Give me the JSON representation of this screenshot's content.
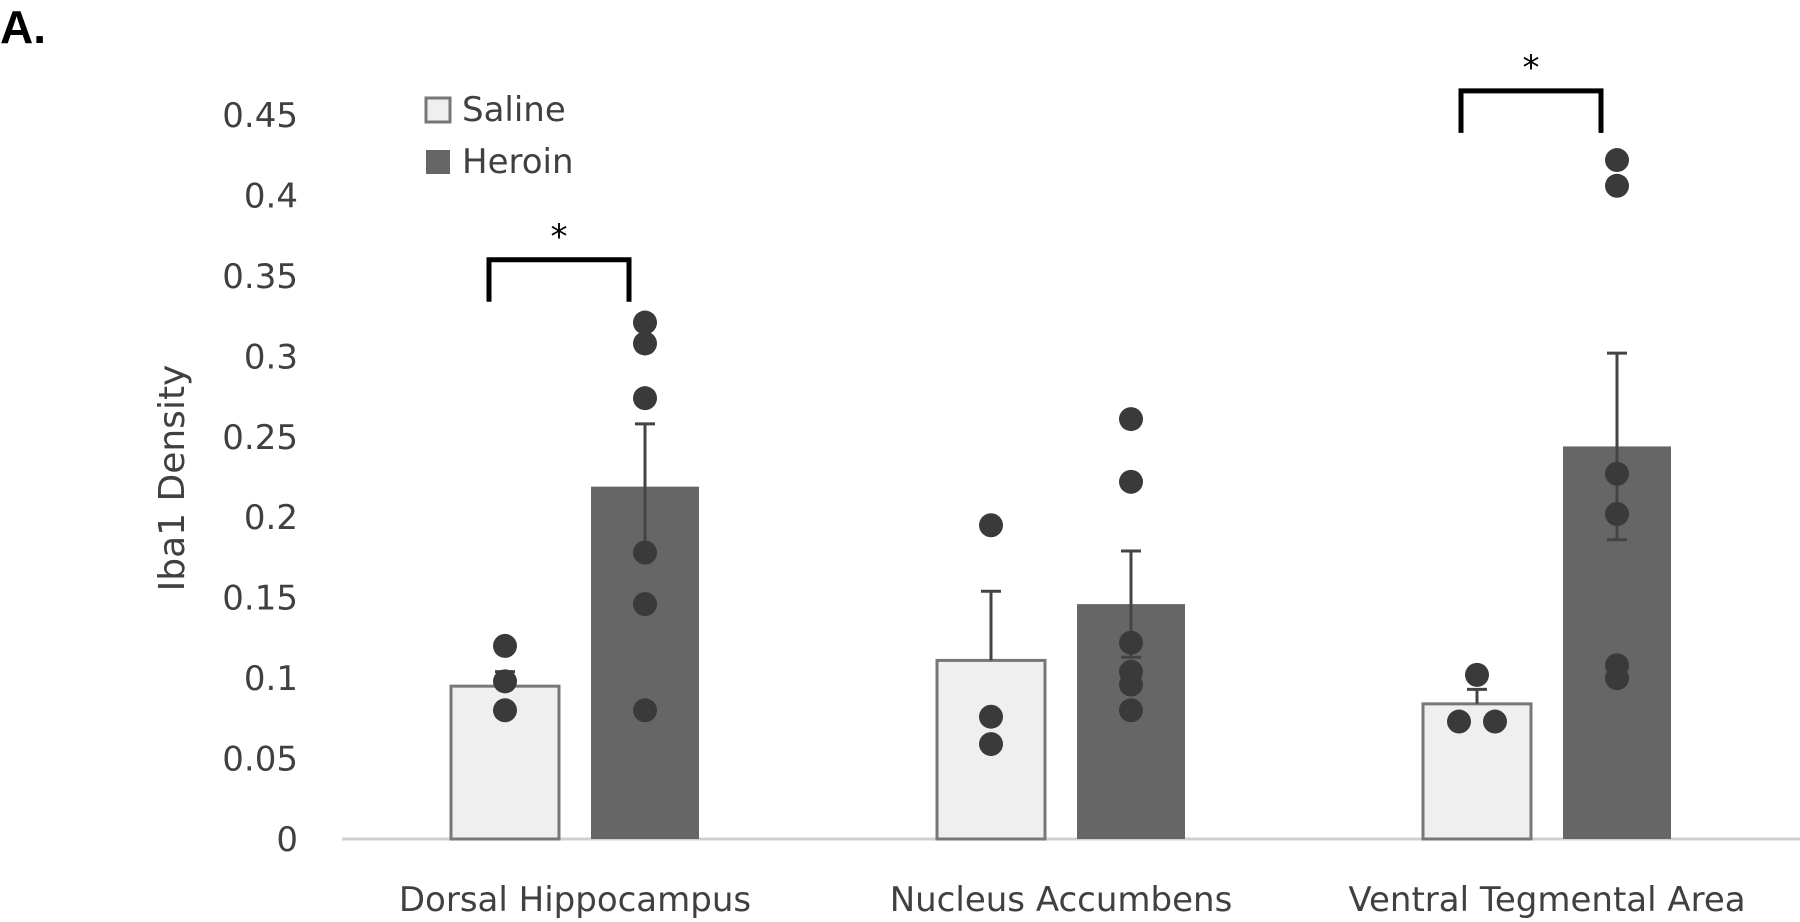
{
  "panel_label": "A.",
  "chart_data": {
    "type": "bar",
    "title": "",
    "xlabel": "",
    "ylabel": "Iba1 Density",
    "ylim": [
      0,
      0.45
    ],
    "yticks": [
      "0",
      "0.05",
      "0.1",
      "0.15",
      "0.2",
      "0.25",
      "0.3",
      "0.35",
      "0.4",
      "0.45"
    ],
    "grid": false,
    "legend_position": "top-left",
    "categories": [
      "Dorsal Hippocampus",
      "Nucleus Accumbens",
      "Ventral Tegmental Area"
    ],
    "series": [
      {
        "name": "Saline",
        "color": "#efefef",
        "edge_color": "#777777",
        "values": [
          0.095,
          0.111,
          0.084
        ],
        "error": [
          0.009,
          0.043,
          0.009
        ],
        "points": [
          [
            0.12,
            0.098,
            0.08
          ],
          [
            0.195,
            0.076,
            0.059
          ],
          [
            0.102,
            0.073,
            0.073
          ]
        ]
      },
      {
        "name": "Heroin",
        "color": "#666666",
        "edge_color": "#666666",
        "values": [
          0.219,
          0.146,
          0.244
        ],
        "error": [
          0.039,
          0.033,
          0.058
        ],
        "points": [
          [
            0.321,
            0.308,
            0.274,
            0.178,
            0.146,
            0.08
          ],
          [
            0.261,
            0.222,
            0.122,
            0.104,
            0.096,
            0.08
          ],
          [
            0.422,
            0.406,
            0.227,
            0.202,
            0.108,
            0.1
          ]
        ]
      }
    ],
    "significance": [
      {
        "category": 0,
        "label": "*",
        "y": 0.36
      },
      {
        "category": 2,
        "label": "*",
        "y": 0.465
      }
    ],
    "dot_color": "#3a3a3a"
  }
}
